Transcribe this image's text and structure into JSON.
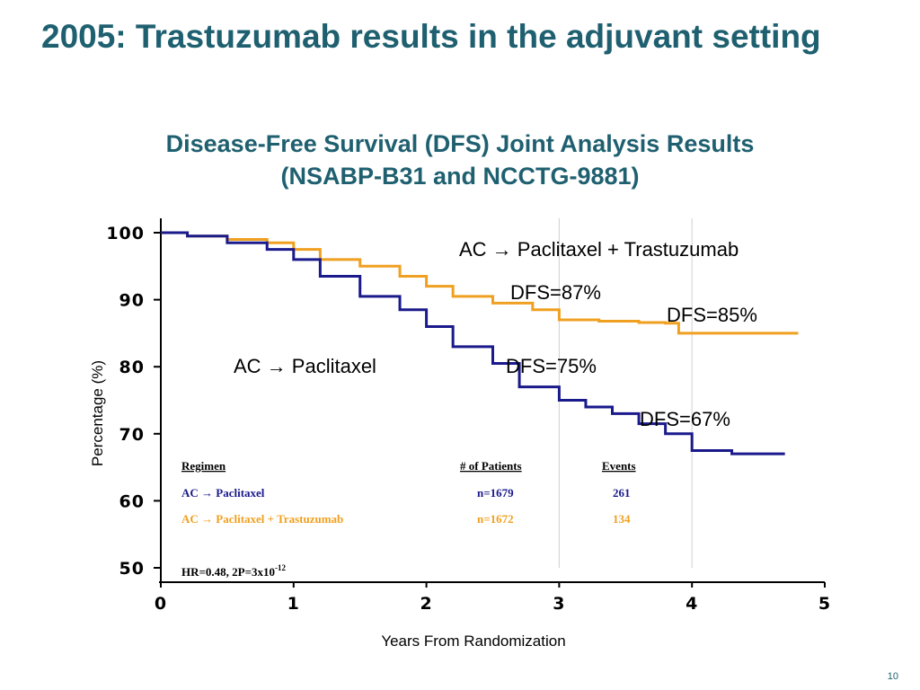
{
  "slide": {
    "title": "2005: Trastuzumab results in the adjuvant setting",
    "subtitle_line1": "Disease-Free Survival (DFS) Joint Analysis Results",
    "subtitle_line2": "(NSABP-B31 and NCCTG-9881)",
    "page_number": "10"
  },
  "colors": {
    "title": "#1f6070",
    "ac_paclitaxel": "#1a1a8c",
    "trastuzumab": "#f0a020",
    "table_navy": "#1a1a8c"
  },
  "chart_data": {
    "type": "line",
    "xlabel": "Years From Randomization",
    "ylabel": "Percentage (%)",
    "xlim": [
      0,
      5
    ],
    "ylim": [
      50,
      100
    ],
    "xticks": [
      "0",
      "1",
      "2",
      "3",
      "4",
      "5"
    ],
    "yticks": [
      "50",
      "60",
      "70",
      "80",
      "90",
      "100"
    ],
    "grid": "vertical lines at x=3 and x=4",
    "series": [
      {
        "name": "AC → Paclitaxel + Trastuzumab",
        "color": "#f0a020",
        "x": [
          0,
          0.2,
          0.5,
          0.8,
          1.0,
          1.2,
          1.5,
          1.8,
          2.0,
          2.2,
          2.5,
          2.8,
          3.0,
          3.3,
          3.6,
          3.8,
          3.9,
          4.2,
          4.5,
          4.8
        ],
        "y": [
          100,
          99.5,
          99,
          98.5,
          97.5,
          96,
          95,
          93.5,
          92,
          90.5,
          89.5,
          88.5,
          87,
          86.8,
          86.6,
          86.5,
          85,
          85,
          85,
          85
        ]
      },
      {
        "name": "AC → Paclitaxel",
        "color": "#1a1a8c",
        "x": [
          0,
          0.2,
          0.5,
          0.8,
          1.0,
          1.2,
          1.5,
          1.8,
          2.0,
          2.2,
          2.5,
          2.7,
          3.0,
          3.2,
          3.4,
          3.6,
          3.8,
          4.0,
          4.3,
          4.7
        ],
        "y": [
          100,
          99.5,
          98.5,
          97.5,
          96,
          93.5,
          90.5,
          88.5,
          86,
          83,
          80.5,
          77,
          75,
          74,
          73,
          71.5,
          70,
          67.5,
          67,
          67
        ]
      }
    ],
    "annotations": [
      {
        "text": "AC → Paclitaxel + Trastuzumab"
      },
      {
        "text": "DFS=87%"
      },
      {
        "text": "DFS=85%"
      },
      {
        "text": "AC → Paclitaxel"
      },
      {
        "text": "DFS=75%"
      },
      {
        "text": "DFS=67%"
      }
    ],
    "table": {
      "headers": [
        "Regimen",
        "# of Patients",
        "Events"
      ],
      "rows": [
        {
          "regimen": "AC → Paclitaxel",
          "patients": "n=1679",
          "events": "261",
          "color": "#1a1a8c"
        },
        {
          "regimen": "AC → Paclitaxel + Trastuzumab",
          "patients": "n=1672",
          "events": "134",
          "color": "#f0a020"
        }
      ],
      "hr_text": "HR=0.48, 2P=3x10",
      "hr_exponent": "-12"
    }
  }
}
